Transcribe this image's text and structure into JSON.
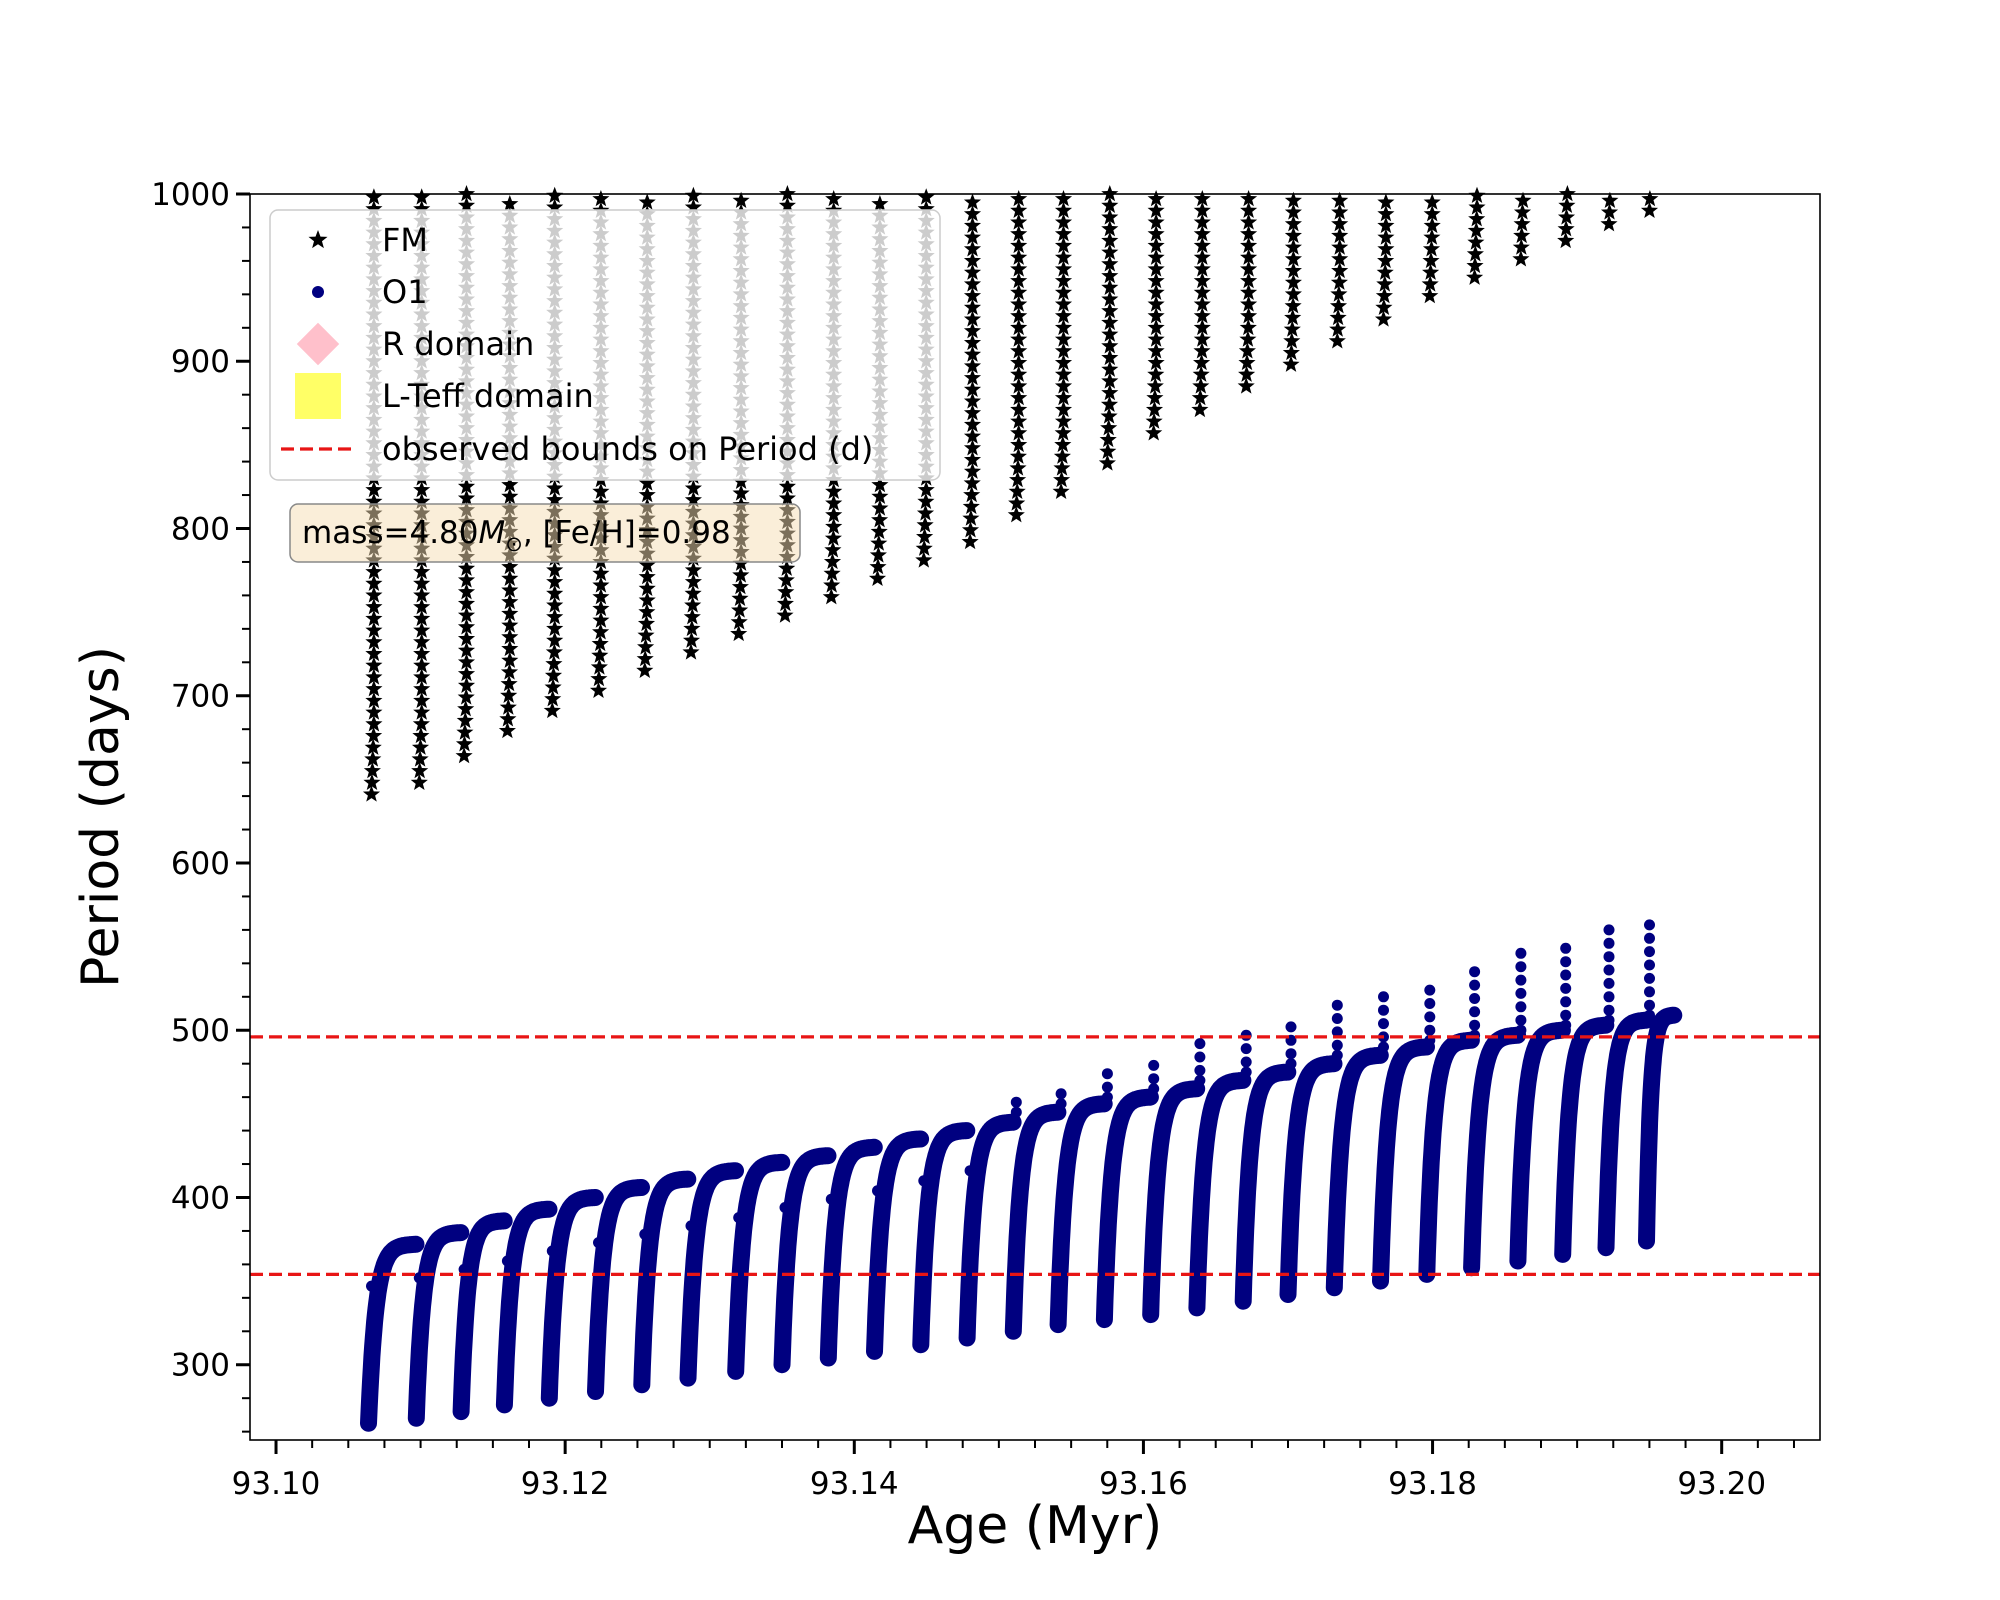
{
  "chart_data": {
    "type": "scatter",
    "title": "",
    "xlabel": "Age (Myr)",
    "ylabel": "Period (days)",
    "xlim": [
      93.0982,
      93.2068
    ],
    "ylim": [
      255,
      1000
    ],
    "xticks": [
      93.1,
      93.12,
      93.14,
      93.16,
      93.18,
      93.2
    ],
    "xtick_labels": [
      "93.10",
      "93.12",
      "93.14",
      "93.16",
      "93.18",
      "93.20"
    ],
    "yticks": [
      300,
      400,
      500,
      600,
      700,
      800,
      900,
      1000
    ],
    "ytick_labels": [
      "300",
      "400",
      "500",
      "600",
      "700",
      "800",
      "900",
      "1000"
    ],
    "grid": false,
    "legend_position": "top-left",
    "series": [
      {
        "name": "FM",
        "marker": "star",
        "color": "#000000",
        "pulse_start_ages": [
          93.1064,
          93.1097,
          93.1128,
          93.1158,
          93.1189,
          93.1221,
          93.1253,
          93.1285,
          93.1318,
          93.135,
          93.1382,
          93.1414,
          93.1446,
          93.1478,
          93.151,
          93.1541,
          93.1573,
          93.1605,
          93.1637,
          93.1669,
          93.17,
          93.1732,
          93.1764,
          93.1796,
          93.1827,
          93.1859,
          93.189,
          93.192,
          93.1948
        ],
        "pulse_min_periods": [
          641,
          648,
          664,
          679,
          691,
          703,
          715,
          726,
          737,
          748,
          759,
          770,
          781,
          792,
          808,
          822,
          839,
          857,
          871,
          885,
          898,
          912,
          925,
          939,
          950,
          961,
          972,
          982,
          990
        ]
      },
      {
        "name": "O1",
        "marker": "circle",
        "color": "#000080",
        "pulse_start_ages": [
          93.1064,
          93.1097,
          93.1128,
          93.1158,
          93.1189,
          93.1221,
          93.1253,
          93.1285,
          93.1318,
          93.135,
          93.1382,
          93.1414,
          93.1446,
          93.1478,
          93.151,
          93.1541,
          93.1573,
          93.1605,
          93.1637,
          93.1669,
          93.17,
          93.1732,
          93.1764,
          93.1796,
          93.1827,
          93.1859,
          93.189,
          93.192,
          93.1948
        ],
        "pulse_min_periods": [
          265,
          268,
          272,
          276,
          280,
          284,
          288,
          292,
          296,
          300,
          304,
          308,
          312,
          316,
          320,
          324,
          327,
          330,
          334,
          338,
          342,
          346,
          350,
          354,
          358,
          362,
          366,
          370,
          374
        ],
        "pulse_max_periods": [
          372,
          379,
          386,
          393,
          400,
          406,
          411,
          416,
          421,
          425,
          430,
          435,
          440,
          445,
          451,
          456,
          460,
          465,
          470,
          475,
          480,
          485,
          490,
          494,
          497,
          500,
          503,
          506,
          509
        ],
        "pulse_spike_periods": [
          347,
          352,
          357,
          362,
          368,
          373,
          378,
          383,
          388,
          394,
          399,
          404,
          410,
          416,
          457,
          465,
          474,
          484,
          493,
          501,
          509,
          516,
          524,
          531,
          539,
          546,
          553,
          560,
          566
        ],
        "final_age": 93.1967
      },
      {
        "name": "R domain",
        "marker": "diamond",
        "color": "#ffc0cb"
      },
      {
        "name": "L-Teff domain",
        "marker": "square",
        "color": "#ffff66"
      },
      {
        "name": "observed bounds on Period (d)",
        "marker": "dashed-line",
        "color": "#e81515",
        "values": [
          354,
          496
        ]
      }
    ],
    "annotation": {
      "prefix": "mass=4.80",
      "symbol": "M",
      "subscript": "⊙",
      "suffix": ", [Fe/H]=0.98"
    }
  }
}
